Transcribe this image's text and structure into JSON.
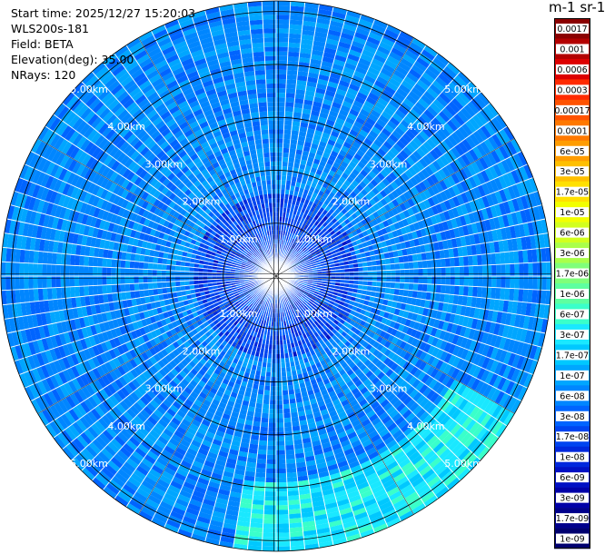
{
  "info": {
    "start_time": "Start time: 2025/12/27 15:20:03",
    "instrument": "WLS200s-181",
    "field": "Field: BETA",
    "elevation": "Elevation(deg): 35.00",
    "nrays": "NRays: 120"
  },
  "colorbar": {
    "title": "m-1 sr-1",
    "labels": [
      "0.0017",
      "0.001",
      "0.0006",
      "0.0003",
      "0.00017",
      "0.0001",
      "6e-05",
      "3e-05",
      "1.7e-05",
      "1e-05",
      "6e-06",
      "3e-06",
      "1.7e-06",
      "1e-06",
      "6e-07",
      "3e-07",
      "1.7e-07",
      "1e-07",
      "6e-08",
      "3e-08",
      "1.7e-08",
      "1e-08",
      "6e-09",
      "3e-09",
      "1.7e-09",
      "1e-09"
    ],
    "colors": [
      "#8b0000",
      "#b30000",
      "#dd0000",
      "#ff2a00",
      "#ff5200",
      "#ff7800",
      "#ff9c00",
      "#ffbf00",
      "#ffe000",
      "#f2ff00",
      "#d2ff1e",
      "#aaff4a",
      "#80ff7a",
      "#5effa0",
      "#3affca",
      "#1ae8ff",
      "#00c8ff",
      "#00a6ff",
      "#0086ff",
      "#0064ff",
      "#0044f0",
      "#0028dd",
      "#0010c4",
      "#0000a8",
      "#00008c",
      "#000070"
    ]
  },
  "chart_data": {
    "type": "heatmap",
    "projection": "polar (PPI)",
    "title": "",
    "field": "BETA",
    "units": "m-1 sr-1",
    "elevation_deg": 35.0,
    "n_rays": 120,
    "range_rings_km": [
      1,
      2,
      3,
      4,
      5
    ],
    "ring_labels": [
      "1.00km",
      "2.00km",
      "3.00km",
      "4.00km",
      "5.00km"
    ],
    "max_range_km": 5.2,
    "color_scale": "log",
    "value_range": [
      1e-09,
      0.0017
    ],
    "dominant_value": 6e-08,
    "enhanced_sector": {
      "azimuth_deg": [
        120,
        190
      ],
      "range_km": [
        3.9,
        5.2
      ],
      "value": 3e-07
    }
  }
}
